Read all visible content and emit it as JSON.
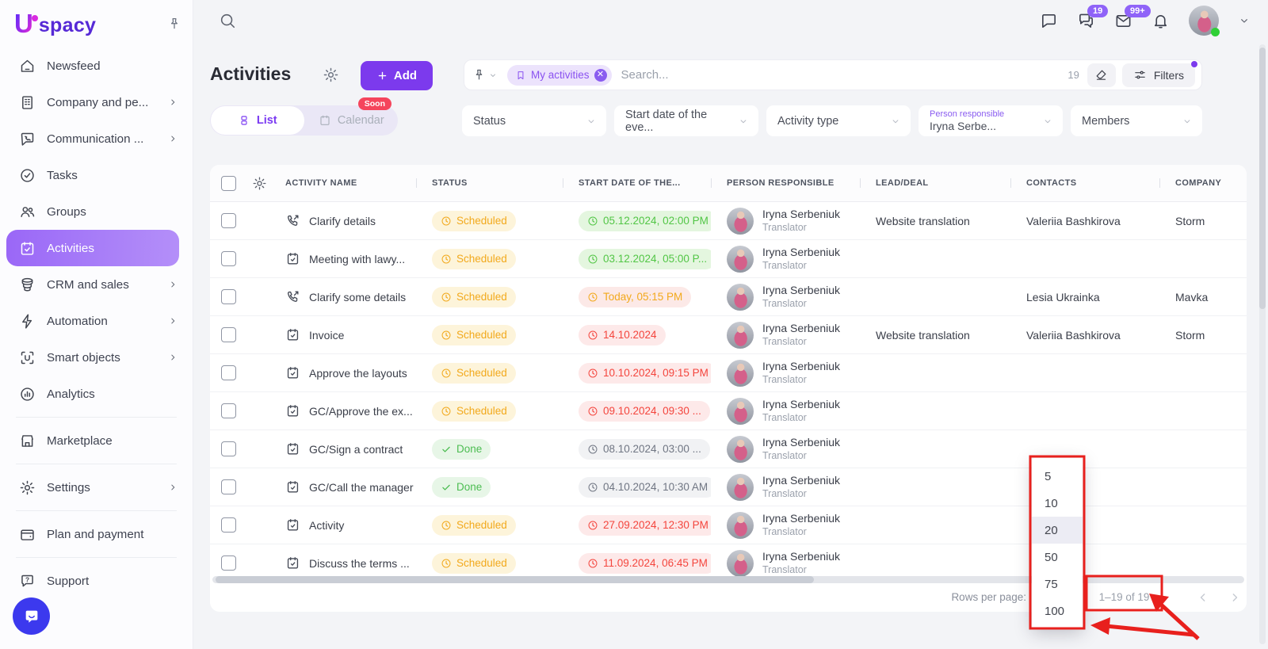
{
  "app": {
    "logo_u": "U",
    "logo_rest": "spacy"
  },
  "topbar": {
    "chats_badge": "19",
    "mail_badge": "99+"
  },
  "sidebar": {
    "items": [
      {
        "label": "Newsfeed",
        "icon": "home"
      },
      {
        "label": "Company and pe...",
        "icon": "building",
        "chevron": true
      },
      {
        "label": "Communication ...",
        "icon": "comm",
        "chevron": true
      },
      {
        "label": "Tasks",
        "icon": "tasks"
      },
      {
        "label": "Groups",
        "icon": "groups"
      },
      {
        "label": "Activities",
        "icon": "calcheck",
        "active": true
      },
      {
        "label": "CRM and sales",
        "icon": "crm",
        "chevron": true
      },
      {
        "label": "Automation",
        "icon": "bolt",
        "chevron": true
      },
      {
        "label": "Smart objects",
        "icon": "smart",
        "chevron": true
      },
      {
        "label": "Analytics",
        "icon": "analytics"
      },
      {
        "divider": true
      },
      {
        "label": "Marketplace",
        "icon": "store"
      },
      {
        "divider": true
      },
      {
        "label": "Settings",
        "icon": "gear",
        "chevron": true
      },
      {
        "divider": true
      },
      {
        "label": "Plan and payment",
        "icon": "wallet"
      },
      {
        "divider": true
      },
      {
        "label": "Support",
        "icon": "support"
      }
    ]
  },
  "page": {
    "title": "Activities",
    "add_button": "Add",
    "tabs": {
      "list": "List",
      "calendar": "Calendar",
      "soon_badge": "Soon"
    },
    "search": {
      "chip": "My activities",
      "placeholder": "Search...",
      "result_count": "19",
      "filters_label": "Filters"
    }
  },
  "filters": [
    {
      "label": "Status"
    },
    {
      "label": "Start date of the eve..."
    },
    {
      "label": "Activity type"
    },
    {
      "label": "Person responsible",
      "value": "Iryna Serbe..."
    },
    {
      "label": "Members"
    }
  ],
  "table": {
    "columns": [
      "ACTIVITY NAME",
      "STATUS",
      "START DATE OF THE...",
      "PERSON RESPONSIBLE",
      "LEAD/DEAL",
      "CONTACTS",
      "COMPANY"
    ],
    "rows": [
      {
        "icon": "phone",
        "name": "Clarify details",
        "status": "Scheduled",
        "status_kind": "scheduled",
        "date": "05.12.2024, 02:00 PM",
        "date_kind": "future",
        "person": "Iryna Serbeniuk",
        "role": "Translator",
        "lead": "Website translation",
        "contacts": "Valeriia Bashkirova",
        "company": "Storm"
      },
      {
        "icon": "cal",
        "name": "Meeting with lawy...",
        "status": "Scheduled",
        "status_kind": "scheduled",
        "date": "03.12.2024, 05:00 P...",
        "date_kind": "future",
        "person": "Iryna Serbeniuk",
        "role": "Translator",
        "lead": "",
        "contacts": "",
        "company": ""
      },
      {
        "icon": "phone",
        "name": "Clarify some details",
        "status": "Scheduled",
        "status_kind": "scheduled",
        "date": "Today, 05:15 PM",
        "date_kind": "today",
        "person": "Iryna Serbeniuk",
        "role": "Translator",
        "lead": "",
        "contacts": "Lesia Ukrainka",
        "company": "Mavka"
      },
      {
        "icon": "cal",
        "name": "Invoice",
        "status": "Scheduled",
        "status_kind": "scheduled",
        "date": "14.10.2024",
        "date_kind": "overdue",
        "person": "Iryna Serbeniuk",
        "role": "Translator",
        "lead": "Website translation",
        "contacts": "Valeriia Bashkirova",
        "company": "Storm"
      },
      {
        "icon": "cal",
        "name": "Approve the layouts",
        "status": "Scheduled",
        "status_kind": "scheduled",
        "date": "10.10.2024, 09:15 PM",
        "date_kind": "overdue",
        "person": "Iryna Serbeniuk",
        "role": "Translator",
        "lead": "",
        "contacts": "",
        "company": ""
      },
      {
        "icon": "cal",
        "name": "GC/Approve the ex...",
        "status": "Scheduled",
        "status_kind": "scheduled",
        "date": "09.10.2024, 09:30 ...",
        "date_kind": "overdue",
        "person": "Iryna Serbeniuk",
        "role": "Translator",
        "lead": "",
        "contacts": "",
        "company": ""
      },
      {
        "icon": "cal",
        "name": "GC/Sign a contract",
        "status": "Done",
        "status_kind": "done",
        "date": "08.10.2024, 03:00 ...",
        "date_kind": "past",
        "person": "Iryna Serbeniuk",
        "role": "Translator",
        "lead": "",
        "contacts": "",
        "company": ""
      },
      {
        "icon": "cal",
        "name": "GC/Call the manager",
        "status": "Done",
        "status_kind": "done",
        "date": "04.10.2024, 10:30 AM",
        "date_kind": "past",
        "person": "Iryna Serbeniuk",
        "role": "Translator",
        "lead": "",
        "contacts": "",
        "company": ""
      },
      {
        "icon": "cal",
        "name": "Activity",
        "status": "Scheduled",
        "status_kind": "scheduled",
        "date": "27.09.2024, 12:30 PM",
        "date_kind": "overdue",
        "person": "Iryna Serbeniuk",
        "role": "Translator",
        "lead": "",
        "contacts": "",
        "company": ""
      },
      {
        "icon": "cal",
        "name": "Discuss the terms ...",
        "status": "Scheduled",
        "status_kind": "scheduled",
        "date": "11.09.2024, 06:45 PM",
        "date_kind": "overdue",
        "person": "Iryna Serbeniuk",
        "role": "Translator",
        "lead": "",
        "contacts": "",
        "company": ""
      }
    ]
  },
  "pagination": {
    "rows_per_page_label": "Rows per page:",
    "range": "1–19 of 19",
    "options": [
      "5",
      "10",
      "20",
      "50",
      "75",
      "100"
    ],
    "selected_option": "20"
  },
  "colors": {
    "accent": "#7c3aed",
    "annotation": "#e8201d",
    "scheduled": "#f2a91c",
    "done": "#4cbd52",
    "overdue": "#f4453d",
    "future": "#52c646"
  }
}
